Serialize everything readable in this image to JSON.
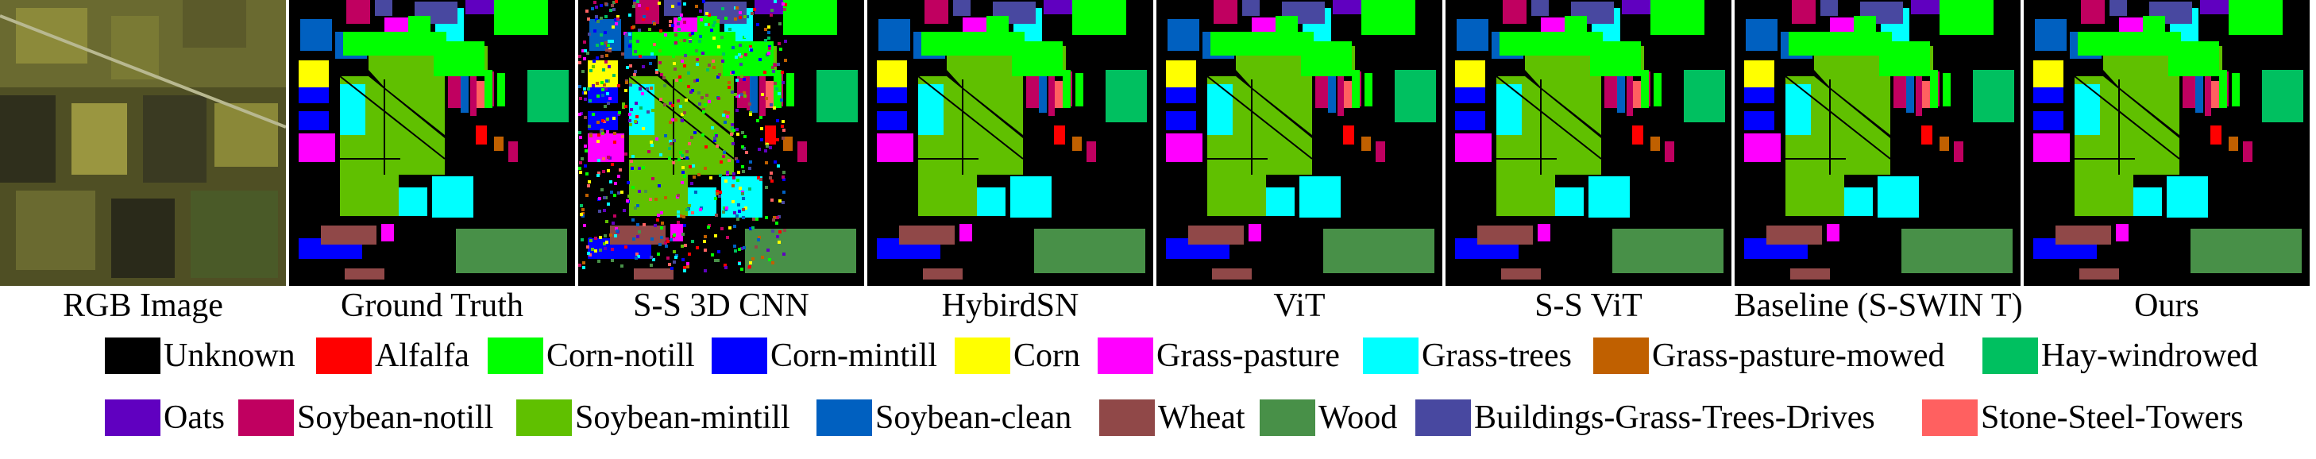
{
  "captions": [
    "RGB Image",
    "Ground Truth",
    "S-S 3D CNN",
    "HybirdSN",
    "ViT",
    "S-S ViT",
    "Baseline (S-SWIN T)",
    "Ours"
  ],
  "legend": [
    {
      "label": "Unknown",
      "color": "#000000"
    },
    {
      "label": "Alfalfa",
      "color": "#ff0000"
    },
    {
      "label": "Corn-notill",
      "color": "#00ff00"
    },
    {
      "label": "Corn-mintill",
      "color": "#0000ff"
    },
    {
      "label": "Corn",
      "color": "#ffff00"
    },
    {
      "label": "Grass-pasture",
      "color": "#ff00ff"
    },
    {
      "label": "Grass-trees",
      "color": "#00ffff"
    },
    {
      "label": "Grass-pasture-mowed",
      "color": "#c06000"
    },
    {
      "label": "Hay-windrowed",
      "color": "#00c060"
    },
    {
      "label": "Oats",
      "color": "#6000c0"
    },
    {
      "label": "Soybean-notill",
      "color": "#c00060"
    },
    {
      "label": "Soybean-mintill",
      "color": "#60c000"
    },
    {
      "label": "Soybean-clean",
      "color": "#0060c0"
    },
    {
      "label": "Wheat",
      "color": "#904848"
    },
    {
      "label": "Wood",
      "color": "#489048"
    },
    {
      "label": "Buildings-Grass-Trees-Drives",
      "color": "#4848a0"
    },
    {
      "label": "Stone-Steel-Towers",
      "color": "#ff6060"
    }
  ]
}
